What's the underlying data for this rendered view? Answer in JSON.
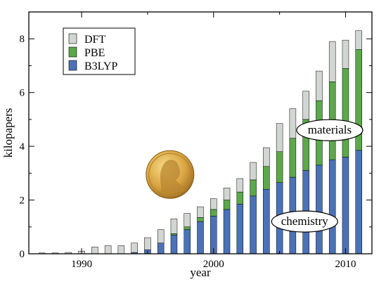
{
  "chart_data": {
    "type": "bar",
    "stacked": true,
    "xlabel": "year",
    "ylabel": "kilopapers",
    "xlim": [
      1986,
      2012
    ],
    "ylim": [
      0,
      9
    ],
    "x_ticks": [
      1990,
      2000,
      2010
    ],
    "y_ticks": [
      0,
      2,
      4,
      6,
      8
    ],
    "grid": false,
    "legend_position": "top-left",
    "x": [
      1987,
      1988,
      1989,
      1990,
      1991,
      1992,
      1993,
      1994,
      1995,
      1996,
      1997,
      1998,
      1999,
      2000,
      2001,
      2002,
      2003,
      2004,
      2005,
      2006,
      2007,
      2008,
      2009,
      2010,
      2011
    ],
    "series": [
      {
        "name": "B3LYP",
        "color": "#4a72b8",
        "values": [
          0,
          0,
          0,
          0,
          0,
          0,
          0,
          0.05,
          0.15,
          0.4,
          0.7,
          0.9,
          1.2,
          1.4,
          1.65,
          1.85,
          2.15,
          2.4,
          2.65,
          2.85,
          3.1,
          3.3,
          3.5,
          3.6,
          3.85
        ]
      },
      {
        "name": "PBE",
        "color": "#5ca84a",
        "values": [
          0,
          0,
          0,
          0,
          0,
          0,
          0,
          0,
          0,
          0,
          0.05,
          0.1,
          0.15,
          0.25,
          0.35,
          0.45,
          0.6,
          0.85,
          1.15,
          1.45,
          1.9,
          2.4,
          2.9,
          3.3,
          3.75
        ]
      },
      {
        "name": "DFT",
        "color": "#d2d6d2",
        "values": [
          0.03,
          0.03,
          0.05,
          0.1,
          0.25,
          0.3,
          0.3,
          0.35,
          0.45,
          0.5,
          0.55,
          0.5,
          0.4,
          0.4,
          0.45,
          0.5,
          0.65,
          0.7,
          1.05,
          1.1,
          1.05,
          1.1,
          1.5,
          1.05,
          0.7
        ]
      }
    ],
    "legend_order": [
      "DFT",
      "PBE",
      "B3LYP"
    ],
    "annotations": [
      {
        "text": "materials",
        "x": 2008.8,
        "y": 4.6
      },
      {
        "text": "chemistry",
        "x": 2006.9,
        "y": 1.2
      }
    ],
    "medal": {
      "icon": "nobel-medal-icon",
      "x": 1996.7,
      "y": 2.95,
      "color": "#d9a441"
    }
  }
}
